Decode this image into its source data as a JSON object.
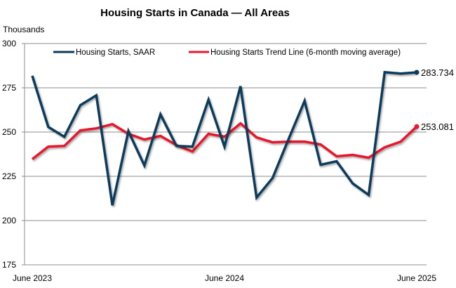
{
  "chart_data": {
    "type": "line",
    "title": "Housing Starts in Canada — All Areas",
    "ylabel": "Thousands",
    "xlabel": "",
    "ylim": [
      175,
      300
    ],
    "yticks": [
      175,
      200,
      225,
      250,
      275,
      300
    ],
    "grid": true,
    "legend_position": "top",
    "x": [
      "Jun 2023",
      "Jul 2023",
      "Aug 2023",
      "Sep 2023",
      "Oct 2023",
      "Nov 2023",
      "Dec 2023",
      "Jan 2024",
      "Feb 2024",
      "Mar 2024",
      "Apr 2024",
      "May 2024",
      "Jun 2024",
      "Jul 2024",
      "Aug 2024",
      "Sep 2024",
      "Oct 2024",
      "Nov 2024",
      "Dec 2024",
      "Jan 2025",
      "Feb 2025",
      "Mar 2025",
      "Apr 2025",
      "May 2025",
      "Jun 2025"
    ],
    "xtick_labels": [
      {
        "index": 0,
        "label": "June 2023"
      },
      {
        "index": 12,
        "label": "June 2024"
      },
      {
        "index": 24,
        "label": "June 2025"
      }
    ],
    "series": [
      {
        "name": "Housing Starts, SAAR",
        "color": "#0f3a5c",
        "values": [
          281.8,
          252.9,
          247.3,
          265.2,
          270.7,
          208.6,
          250.5,
          231.1,
          260.0,
          242.2,
          241.8,
          268.3,
          241.8,
          275.9,
          213.0,
          224.0,
          246.0,
          267.6,
          231.5,
          233.5,
          221.0,
          214.5,
          283.8,
          283.0,
          283.734
        ],
        "end_label": "283.734"
      },
      {
        "name": "Housing Starts Trend Line (6-month moving average)",
        "color": "#e8192c",
        "values": [
          234.7,
          241.8,
          242.2,
          250.9,
          252.1,
          254.5,
          249.0,
          245.8,
          247.8,
          242.6,
          239.0,
          249.0,
          247.4,
          254.9,
          247.0,
          244.2,
          244.6,
          244.6,
          243.0,
          236.3,
          237.1,
          235.5,
          241.4,
          244.6,
          253.081
        ],
        "end_label": "253.081"
      }
    ]
  }
}
